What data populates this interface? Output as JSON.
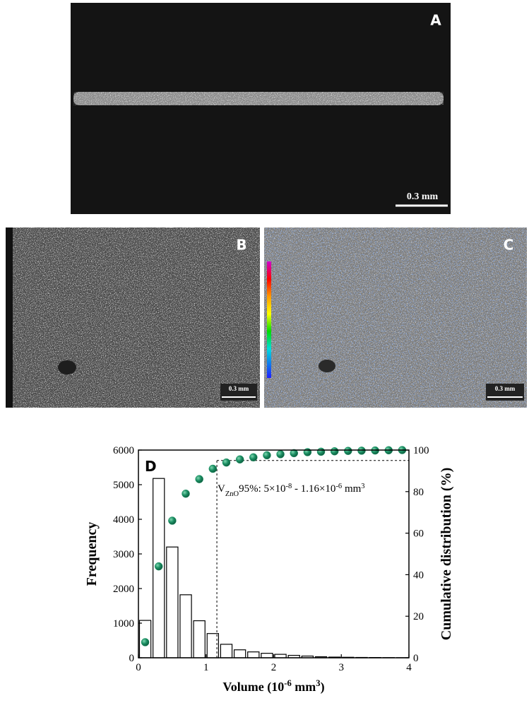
{
  "panels": [
    {
      "label": "A",
      "scale_bar": "0.3 mm"
    },
    {
      "label": "B",
      "scale_bar": "0.3 mm"
    },
    {
      "label": "C",
      "scale_bar": "0.3 mm"
    }
  ],
  "chart_data": {
    "type": "histogram",
    "panel_label": "D",
    "xlabel": [
      "Volume (10",
      "-6",
      " mm",
      "3",
      ")"
    ],
    "ylabel": "Frequency",
    "y2label": "Cumulative distribution (%)",
    "annotation": [
      "V",
      "ZnO",
      "95%: 5×10",
      "-8",
      " - 1.16×10",
      "-6",
      " mm",
      "3"
    ],
    "bins": [
      0,
      0.2,
      0.4,
      0.6,
      0.8,
      1.0,
      1.2,
      1.4,
      1.6,
      1.8,
      2.0,
      2.2,
      2.4,
      2.6,
      2.8,
      3.0,
      3.2,
      3.4,
      3.6,
      3.8,
      4.0
    ],
    "values": [
      1080,
      5180,
      3200,
      1820,
      1070,
      700,
      390,
      230,
      170,
      130,
      100,
      70,
      50,
      30,
      20,
      15,
      10,
      8,
      5,
      3
    ],
    "color": "#ffffff",
    "edgecolor": "#000000",
    "cumulative": {
      "x": [
        0.1,
        0.3,
        0.5,
        0.7,
        0.9,
        1.1,
        1.3,
        1.5,
        1.7,
        1.9,
        2.1,
        2.3,
        2.5,
        2.7,
        2.9,
        3.1,
        3.3,
        3.5,
        3.7,
        3.9
      ],
      "values": [
        7.5,
        44,
        66,
        79,
        86,
        91,
        94,
        95.5,
        96.5,
        97.5,
        98,
        98.5,
        99,
        99.2,
        99.4,
        99.6,
        99.7,
        99.8,
        99.9,
        100
      ],
      "color": "#1b8f63",
      "axis": "y2"
    },
    "threshold_x": 1.16,
    "threshold_y2": 95,
    "xlim": [
      0,
      4
    ],
    "xticks": [
      0,
      1,
      2,
      3,
      4
    ],
    "ylim": [
      0,
      6000
    ],
    "yticks": [
      0,
      1000,
      2000,
      3000,
      4000,
      5000,
      6000
    ],
    "y2lim": [
      0,
      100
    ],
    "y2ticks": [
      0,
      20,
      40,
      60,
      80,
      100
    ]
  }
}
